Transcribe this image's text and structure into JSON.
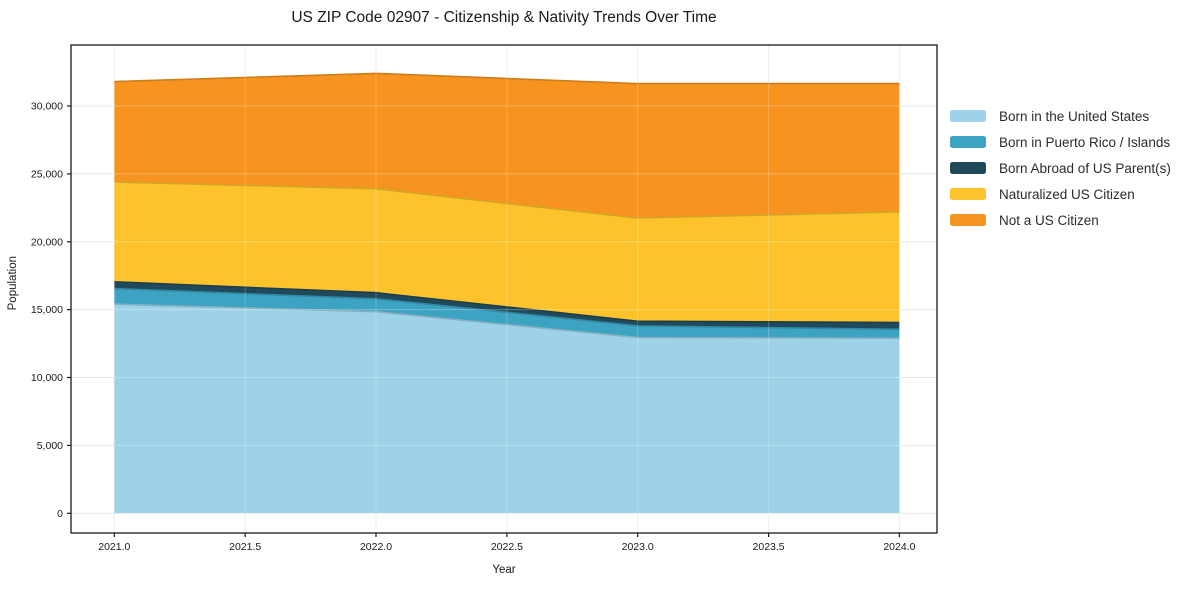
{
  "chart_data": {
    "type": "area",
    "stacked": true,
    "title": "US ZIP Code 02907 - Citizenship & Nativity Trends Over Time",
    "xlabel": "Year",
    "ylabel": "Population",
    "x": [
      2021,
      2022,
      2023,
      2024
    ],
    "series": [
      {
        "name": "Born in the United States",
        "color": "#9ed2e8",
        "values": [
          15400,
          14850,
          12950,
          12900
        ]
      },
      {
        "name": "Born in Puerto Rico / Islands",
        "color": "#3da3c2",
        "values": [
          1150,
          950,
          850,
          650
        ]
      },
      {
        "name": "Born Abroad of US Parent(s)",
        "color": "#204a5c",
        "values": [
          500,
          450,
          350,
          500
        ]
      },
      {
        "name": "Naturalized US Citizen",
        "color": "#fcc32d",
        "values": [
          7350,
          7650,
          7600,
          8150
        ]
      },
      {
        "name": "Not a US Citizen",
        "color": "#f7941f",
        "values": [
          7400,
          8500,
          9900,
          9450
        ]
      }
    ],
    "stacked_totals": [
      31800,
      32400,
      31650,
      31650
    ],
    "x_ticks": [
      2021.0,
      2021.5,
      2022.0,
      2022.5,
      2023.0,
      2023.5,
      2024.0
    ],
    "x_tick_labels": [
      "2021.0",
      "2021.5",
      "2022.0",
      "2022.5",
      "2023.0",
      "2023.5",
      "2024.0"
    ],
    "y_ticks": [
      0,
      5000,
      10000,
      15000,
      20000,
      25000,
      30000
    ],
    "y_tick_labels": [
      "0",
      "5,000",
      "10,000",
      "15,000",
      "20,000",
      "25,000",
      "30,000"
    ],
    "grid": true,
    "legend_position": "right-outside",
    "colors": {
      "gridline": "#e8e8e8",
      "frame": "#1a1a1a",
      "background": "#ffffff"
    }
  }
}
